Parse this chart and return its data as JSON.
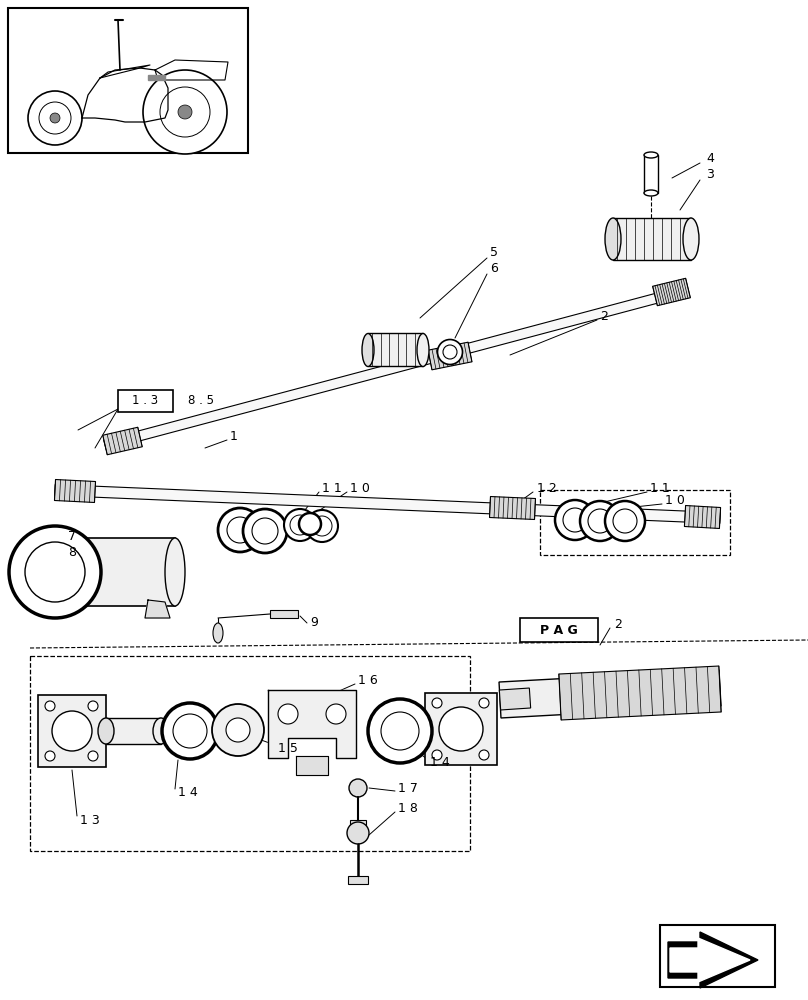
{
  "bg_color": "#ffffff",
  "line_color": "#000000",
  "fig_width": 8.08,
  "fig_height": 10.0,
  "dpi": 100,
  "label_box_text": "1 . 3",
  "label_box2_text": "8 . 5",
  "pag_box_text": "P A G"
}
